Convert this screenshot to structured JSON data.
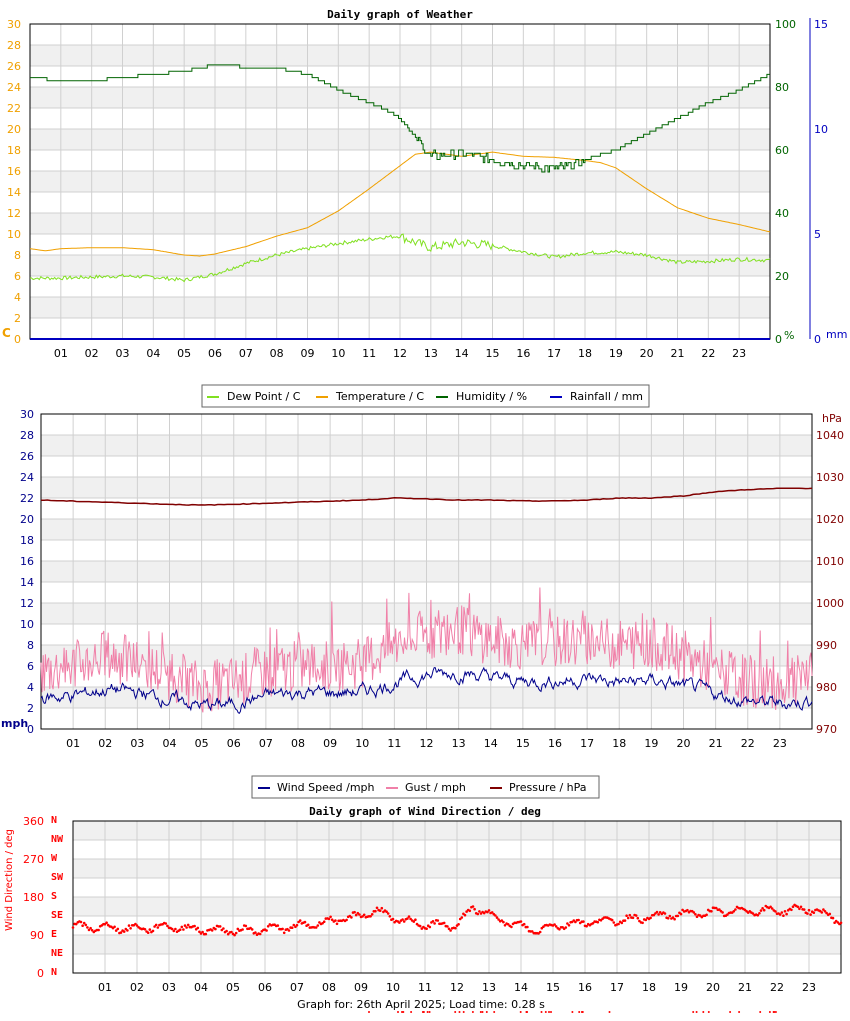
{
  "chart_data": [
    {
      "type": "line",
      "title": "Daily graph of Weather",
      "x_categories": [
        "01",
        "02",
        "03",
        "04",
        "05",
        "06",
        "07",
        "08",
        "09",
        "10",
        "11",
        "12",
        "13",
        "14",
        "15",
        "16",
        "17",
        "18",
        "19",
        "20",
        "21",
        "22",
        "23"
      ],
      "x_range_hours": [
        0,
        24
      ],
      "y_left": {
        "label": "C",
        "range": [
          0,
          30
        ],
        "ticks": [
          0,
          2,
          4,
          6,
          8,
          10,
          12,
          14,
          16,
          18,
          20,
          22,
          24,
          26,
          28,
          30
        ],
        "color": "#f0a000"
      },
      "y_right": {
        "label": "%",
        "range": [
          0,
          100
        ],
        "ticks": [
          0,
          20,
          40,
          60,
          80,
          100
        ],
        "color": "#006400"
      },
      "y_right2": {
        "label": "mm",
        "range": [
          0,
          15
        ],
        "ticks": [
          0,
          5,
          10,
          15
        ],
        "color": "#0000c0"
      },
      "grid": true,
      "legend_position": "bottom",
      "series": [
        {
          "name": "Dew Point / C",
          "color": "#80e020",
          "axis": "left",
          "x": [
            0,
            1,
            2,
            3,
            4,
            5,
            6,
            7,
            8,
            9,
            10,
            11,
            11.5,
            12,
            12.5,
            13,
            14,
            15,
            16,
            17,
            18,
            19,
            20,
            21,
            22,
            23,
            24
          ],
          "values": [
            5.8,
            5.8,
            5.9,
            6.0,
            5.9,
            5.6,
            6.2,
            7.2,
            8.0,
            8.6,
            9.1,
            9.5,
            9.7,
            9.8,
            9.2,
            8.7,
            9.2,
            8.9,
            8.3,
            7.8,
            8.2,
            8.3,
            8.0,
            7.3,
            7.4,
            7.6,
            7.5
          ]
        },
        {
          "name": "Temperature / C",
          "color": "#f0a000",
          "axis": "left",
          "x": [
            0,
            0.5,
            1,
            2,
            3,
            4,
            5,
            5.5,
            6,
            7,
            8,
            9,
            10,
            11,
            12,
            12.5,
            13,
            14,
            15,
            16,
            17,
            18,
            18.5,
            19,
            20,
            21,
            22,
            23,
            24
          ],
          "values": [
            8.6,
            8.4,
            8.6,
            8.7,
            8.7,
            8.5,
            8.0,
            7.9,
            8.1,
            8.8,
            9.8,
            10.6,
            12.2,
            14.3,
            16.5,
            17.6,
            17.8,
            17.4,
            17.8,
            17.4,
            17.3,
            17.0,
            16.8,
            16.3,
            14.3,
            12.5,
            11.5,
            10.9,
            10.2
          ]
        },
        {
          "name": "Humidity / %",
          "color": "#006400",
          "axis": "right",
          "x": [
            0,
            1,
            2,
            3,
            4,
            5,
            6,
            6.5,
            7,
            8,
            9,
            10,
            11,
            11.5,
            12,
            12.5,
            13,
            14,
            15,
            16,
            17,
            17.5,
            18,
            19,
            20,
            21,
            22,
            23,
            24
          ],
          "values": [
            83,
            82,
            82,
            83,
            84,
            85,
            87,
            87,
            86,
            86,
            84,
            79,
            75,
            73,
            70,
            64,
            58,
            59,
            57,
            55,
            54,
            55,
            57,
            60,
            65,
            70,
            75,
            79,
            84
          ]
        },
        {
          "name": "Rainfall / mm",
          "color": "#0000c0",
          "axis": "right2",
          "x": [
            0,
            24
          ],
          "values": [
            0,
            0
          ]
        }
      ]
    },
    {
      "type": "line",
      "title": "",
      "x_categories": [
        "01",
        "02",
        "03",
        "04",
        "05",
        "06",
        "07",
        "08",
        "09",
        "10",
        "11",
        "12",
        "13",
        "14",
        "15",
        "16",
        "17",
        "18",
        "19",
        "20",
        "21",
        "22",
        "23"
      ],
      "x_range_hours": [
        0,
        24
      ],
      "y_left": {
        "label": "mph",
        "range": [
          0,
          30
        ],
        "ticks": [
          0,
          2,
          4,
          6,
          8,
          10,
          12,
          14,
          16,
          18,
          20,
          22,
          24,
          26,
          28,
          30
        ],
        "color": "#00008b"
      },
      "y_right": {
        "label": "hPa",
        "range": [
          970,
          1045
        ],
        "ticks": [
          970,
          980,
          990,
          1000,
          1010,
          1020,
          1030,
          1040
        ],
        "color": "#800000"
      },
      "grid": true,
      "legend_position": "bottom",
      "series": [
        {
          "name": "Wind Speed /mph",
          "color": "#00008b",
          "axis": "left",
          "x": [
            0,
            1,
            2,
            3,
            4,
            5,
            6,
            7,
            8,
            9,
            10,
            11,
            12,
            13,
            14,
            15,
            16,
            17,
            18,
            19,
            20,
            21,
            22,
            23,
            24
          ],
          "values": [
            3.0,
            3.2,
            3.8,
            3.4,
            2.8,
            2.2,
            2.4,
            3.2,
            3.5,
            3.4,
            3.6,
            4.5,
            5.2,
            5.4,
            4.8,
            4.5,
            4.6,
            4.8,
            4.4,
            4.6,
            4.0,
            3.2,
            2.6,
            2.4,
            2.8
          ]
        },
        {
          "name": "Gust / mph",
          "color": "#f080a8",
          "axis": "left",
          "x": [
            0,
            1,
            2,
            3,
            4,
            5,
            6,
            7,
            8,
            9,
            10,
            11,
            12,
            13,
            14,
            15,
            16,
            17,
            18,
            19,
            20,
            21,
            22,
            23,
            24
          ],
          "values": [
            5.5,
            6.0,
            7.0,
            6.2,
            5.2,
            4.0,
            4.5,
            5.5,
            6.0,
            6.0,
            6.3,
            8.0,
            9.0,
            9.5,
            8.5,
            8.0,
            8.2,
            8.5,
            8.0,
            8.2,
            7.0,
            5.5,
            4.5,
            4.2,
            4.8
          ]
        },
        {
          "name": "Pressure / hPa",
          "color": "#800000",
          "axis": "right",
          "x": [
            0,
            2,
            4,
            5,
            6,
            8,
            10,
            11,
            12,
            13,
            14,
            15,
            16,
            17,
            18,
            19,
            20,
            21,
            22,
            23,
            24
          ],
          "values": [
            1024.5,
            1024,
            1023.5,
            1023.3,
            1023.5,
            1024,
            1024.5,
            1025,
            1024.8,
            1024.5,
            1024.5,
            1024.3,
            1024.3,
            1024.5,
            1025,
            1025,
            1025.5,
            1026.5,
            1027,
            1027.3,
            1027.3
          ]
        }
      ]
    },
    {
      "type": "scatter",
      "title": "Daily graph of Wind Direction / deg",
      "x_categories": [
        "01",
        "02",
        "03",
        "04",
        "05",
        "06",
        "07",
        "08",
        "09",
        "10",
        "11",
        "12",
        "13",
        "14",
        "15",
        "16",
        "17",
        "18",
        "19",
        "20",
        "21",
        "22",
        "23"
      ],
      "x_range_hours": [
        0,
        24
      ],
      "y_left": {
        "label": "Wind Direction / deg",
        "range": [
          0,
          360
        ],
        "ticks": [
          0,
          90,
          180,
          270,
          360
        ],
        "color": "#ff0000"
      },
      "compass_labels": [
        "N",
        "NE",
        "E",
        "SE",
        "S",
        "SW",
        "W",
        "NW",
        "N"
      ],
      "grid": true,
      "series": [
        {
          "name": "Wind Direction",
          "color": "#ff0000",
          "x": [
            0,
            1,
            2,
            3,
            4,
            5,
            6,
            7,
            8,
            9,
            9.5,
            10,
            11,
            12,
            12.5,
            13,
            13.5,
            14,
            14.5,
            15,
            16,
            17,
            18,
            19,
            20,
            21,
            22,
            23,
            24
          ],
          "values": [
            110,
            108,
            105,
            110,
            103,
            100,
            103,
            110,
            122,
            135,
            150,
            128,
            115,
            112,
            155,
            140,
            122,
            110,
            100,
            112,
            120,
            125,
            132,
            140,
            143,
            148,
            147,
            152,
            125
          ]
        }
      ]
    }
  ],
  "footer": {
    "text": "Graph for: 26th April 2025; Load time: 0.28 s"
  },
  "colors": {
    "grid_band": "#f0f0f0",
    "grid_line": "#d0d0d0",
    "frame": "#000000"
  }
}
